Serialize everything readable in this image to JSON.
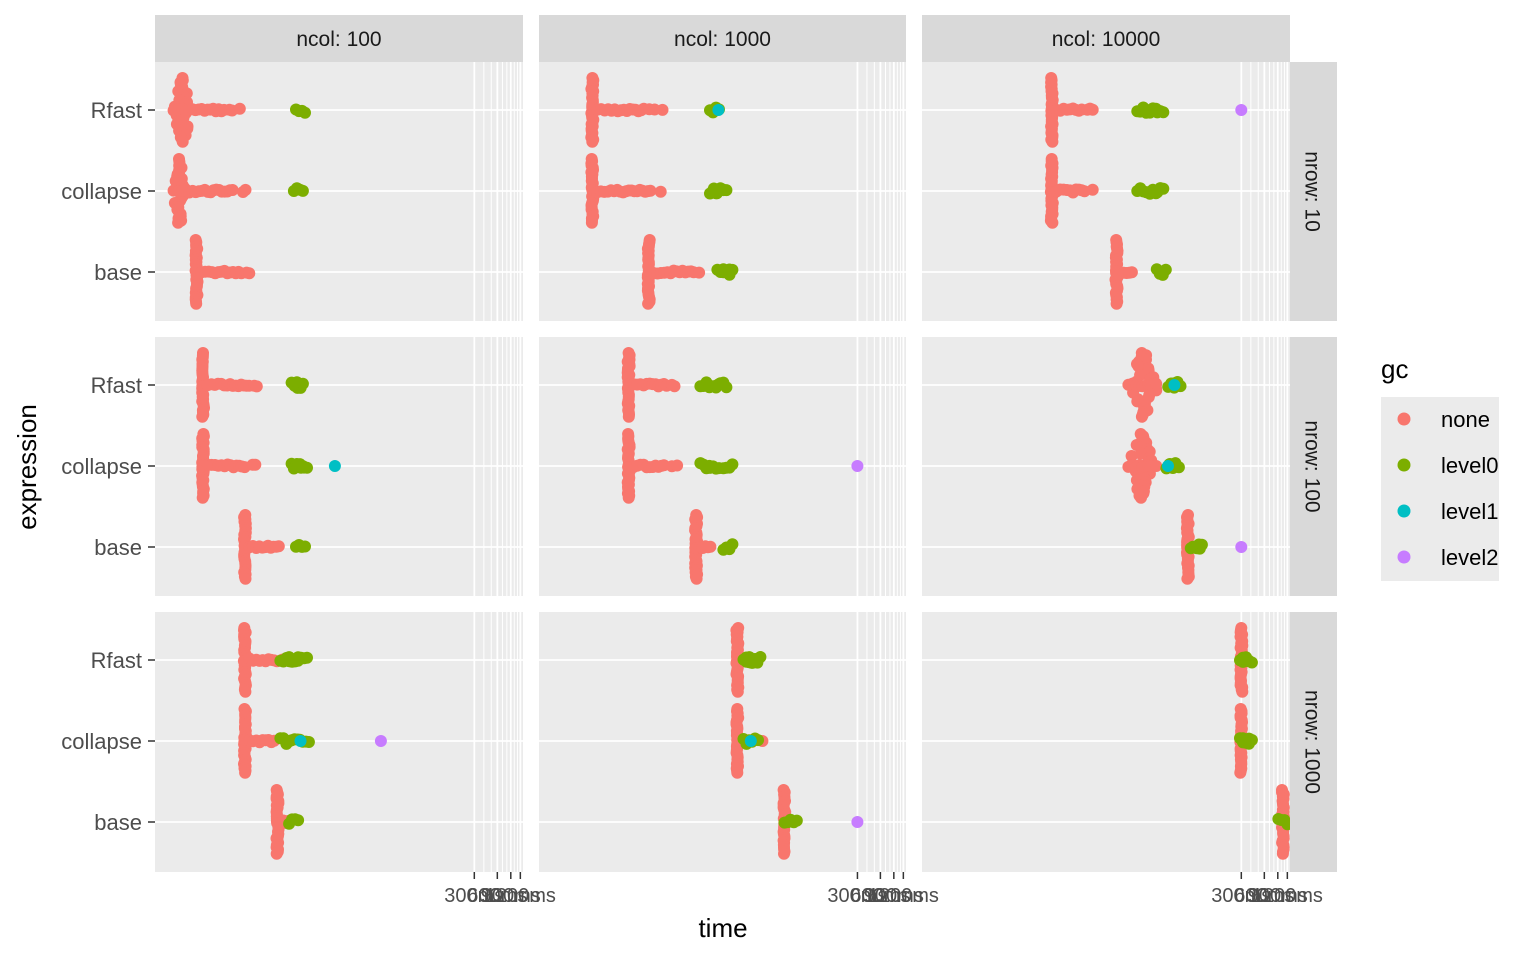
{
  "chart_data": {
    "type": "scatter",
    "xlabel": "time",
    "ylabel": "expression",
    "x_scale": "log",
    "x_tick_labels": [
      "300ms",
      "600ms",
      "900ms",
      "1200ms"
    ],
    "x_tick_values_ms": [
      300,
      600,
      900,
      1200
    ],
    "x_lim_ms": [
      0.02,
      1300
    ],
    "categories": [
      "Rfast",
      "collapse",
      "base"
    ],
    "facet_cols": [
      "ncol: 100",
      "ncol: 1000",
      "ncol: 10000"
    ],
    "facet_rows": [
      "nrow: 10",
      "nrow: 100",
      "nrow: 1000"
    ],
    "legend": {
      "title": "gc",
      "position": "right",
      "items": [
        {
          "name": "none",
          "color": "#F8766D"
        },
        {
          "name": "level0",
          "color": "#7CAE00"
        },
        {
          "name": "level1",
          "color": "#00BFC4"
        },
        {
          "name": "level2",
          "color": "#C77CFF"
        }
      ]
    },
    "grid": true,
    "panel_background": "#EBEBEB",
    "strip_background": "#D9D9D9",
    "panels": [
      {
        "col": 0,
        "row": 0,
        "groups": [
          {
            "expression": "Rfast",
            "core_ms": [
              0.035,
              0.06
            ],
            "tail_max_ms": 0.3,
            "level0": [
              1.6
            ],
            "level1": [],
            "level2": []
          },
          {
            "expression": "collapse",
            "core_ms": [
              0.035,
              0.05
            ],
            "tail_max_ms": 0.33,
            "level0": [
              1.5
            ],
            "level1": [],
            "level2": []
          },
          {
            "expression": "base",
            "core_ms": [
              0.07,
              0.07
            ],
            "tail_max_ms": 0.37,
            "level0": [],
            "level1": [],
            "level2": []
          }
        ]
      },
      {
        "col": 1,
        "row": 0,
        "groups": [
          {
            "expression": "Rfast",
            "core_ms": [
              0.1,
              0.1
            ],
            "tail_max_ms": 0.9,
            "level0": [
              4.0
            ],
            "level1": [
              4.5
            ],
            "level2": []
          },
          {
            "expression": "collapse",
            "core_ms": [
              0.1,
              0.1
            ],
            "tail_max_ms": 0.85,
            "level0": [
              4.0,
              4.5,
              5.0
            ],
            "level1": [],
            "level2": []
          },
          {
            "expression": "base",
            "core_ms": [
              0.55,
              0.55
            ],
            "tail_max_ms": 3.2,
            "level0": [
              5.0,
              5.5,
              6.0
            ],
            "level1": [],
            "level2": []
          }
        ]
      },
      {
        "col": 2,
        "row": 0,
        "groups": [
          {
            "expression": "Rfast",
            "core_ms": [
              1.0,
              1.0
            ],
            "tail_max_ms": 3.7,
            "level0": [
              15,
              20,
              25
            ],
            "level1": [],
            "level2": [
              300
            ]
          },
          {
            "expression": "collapse",
            "core_ms": [
              1.0,
              1.0
            ],
            "tail_max_ms": 3.7,
            "level0": [
              15,
              20,
              25
            ],
            "level1": [],
            "level2": []
          },
          {
            "expression": "base",
            "core_ms": [
              7.0,
              7.0
            ],
            "tail_max_ms": 12,
            "level0": [
              27
            ],
            "level1": [],
            "level2": []
          }
        ]
      },
      {
        "col": 0,
        "row": 1,
        "groups": [
          {
            "expression": "Rfast",
            "core_ms": [
              0.085,
              0.085
            ],
            "tail_max_ms": 0.5,
            "level0": [
              1.4,
              1.5
            ],
            "level1": [],
            "level2": []
          },
          {
            "expression": "collapse",
            "core_ms": [
              0.085,
              0.085
            ],
            "tail_max_ms": 0.48,
            "level0": [
              1.4,
              1.5,
              1.7
            ],
            "level1": [
              4.5
            ],
            "level2": []
          },
          {
            "expression": "base",
            "core_ms": [
              0.3,
              0.3
            ],
            "tail_max_ms": 0.9,
            "level0": [
              1.6
            ],
            "level1": [],
            "level2": []
          }
        ]
      },
      {
        "col": 1,
        "row": 1,
        "groups": [
          {
            "expression": "Rfast",
            "core_ms": [
              0.3,
              0.3
            ],
            "tail_max_ms": 1.4,
            "level0": [
              3.0,
              4.0,
              5.0
            ],
            "level1": [],
            "level2": []
          },
          {
            "expression": "collapse",
            "core_ms": [
              0.3,
              0.3
            ],
            "tail_max_ms": 1.4,
            "level0": [
              3.0,
              4.0,
              6.0
            ],
            "level1": [],
            "level2": [
              300
            ]
          },
          {
            "expression": "base",
            "core_ms": [
              2.3,
              2.3
            ],
            "tail_max_ms": 3.8,
            "level0": [
              6.0
            ],
            "level1": [],
            "level2": []
          }
        ]
      },
      {
        "col": 2,
        "row": 1,
        "groups": [
          {
            "expression": "Rfast",
            "core_ms": [
              10,
              25
            ],
            "tail_max_ms": 27,
            "level0": [
              38,
              42
            ],
            "level1": [
              40
            ],
            "level2": []
          },
          {
            "expression": "collapse",
            "core_ms": [
              10,
              22
            ],
            "tail_max_ms": 27,
            "level0": [
              36,
              40
            ],
            "level1": [
              33
            ],
            "level2": []
          },
          {
            "expression": "base",
            "core_ms": [
              60,
              60
            ],
            "tail_max_ms": 62,
            "level0": [
              75,
              80
            ],
            "level1": [],
            "level2": [
              300
            ]
          }
        ]
      },
      {
        "col": 0,
        "row": 2,
        "groups": [
          {
            "expression": "Rfast",
            "core_ms": [
              0.3,
              0.3
            ],
            "tail_max_ms": 1.0,
            "level0": [
              1.0,
              1.3,
              1.7
            ],
            "level1": [],
            "level2": []
          },
          {
            "expression": "collapse",
            "core_ms": [
              0.3,
              0.3
            ],
            "tail_max_ms": 1.0,
            "level0": [
              1.0,
              1.4,
              1.8
            ],
            "level1": [
              1.6
            ],
            "level2": [
              18
            ]
          },
          {
            "expression": "base",
            "core_ms": [
              0.8,
              0.8
            ],
            "tail_max_ms": 1.25,
            "level0": [
              1.3
            ],
            "level1": [],
            "level2": []
          }
        ]
      },
      {
        "col": 1,
        "row": 2,
        "groups": [
          {
            "expression": "Rfast",
            "core_ms": [
              8,
              8
            ],
            "tail_max_ms": 9.5,
            "level0": [
              11,
              12,
              14
            ],
            "level1": [],
            "level2": []
          },
          {
            "expression": "collapse",
            "core_ms": [
              8,
              8
            ],
            "tail_max_ms": 9.5,
            "level0": [
              11,
              13
            ],
            "level1": [
              12
            ],
            "level2": [],
            "extra_none": [
              17
            ]
          },
          {
            "expression": "base",
            "core_ms": [
              33,
              33
            ],
            "tail_max_ms": 36,
            "level0": [
              38,
              42
            ],
            "level1": [],
            "level2": [
              300
            ]
          }
        ]
      },
      {
        "col": 2,
        "row": 2,
        "groups": [
          {
            "expression": "Rfast",
            "core_ms": [
              300,
              300
            ],
            "tail_max_ms": 300,
            "level0": [
              330,
              360
            ],
            "level1": [],
            "level2": []
          },
          {
            "expression": "collapse",
            "core_ms": [
              300,
              300
            ],
            "tail_max_ms": 300,
            "level0": [
              330,
              360
            ],
            "level1": [],
            "level2": []
          },
          {
            "expression": "base",
            "core_ms": [
              1050,
              1050
            ],
            "tail_max_ms": 1050,
            "level0": [
              1050
            ],
            "level1": [],
            "level2": []
          }
        ]
      }
    ]
  }
}
